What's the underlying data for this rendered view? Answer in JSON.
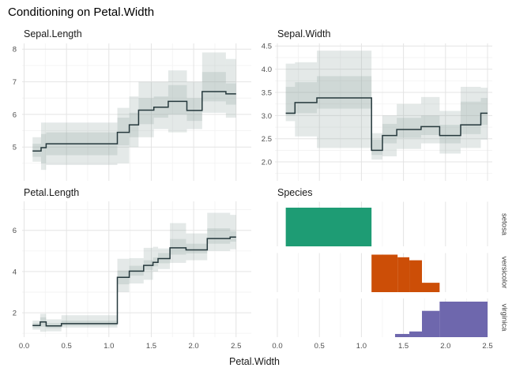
{
  "title": "Conditioning on Petal.Width",
  "colors": {
    "band": "rgba(141,163,158,0.24)",
    "step_line": "#25383c",
    "grid_major": "#e4e4e4",
    "grid_minor": "#f3f3f3",
    "tick_text": "#4f4f4f",
    "setosa": "#1e9c74",
    "versicolor": "#cc4e07",
    "virginica": "#6e67ad"
  },
  "chart_data": {
    "type": "multi-panel",
    "description": "Conditional step-means of iris variables given Petal.Width, with inner/outer confidence bands, plus Petal.Width histograms faceted by Species",
    "x_axis": {
      "title": "Petal.Width",
      "range": [
        0.0,
        2.5
      ],
      "ticks": [
        {
          "v": 0.0,
          "label": "0.0"
        },
        {
          "v": 0.5,
          "label": "0.5"
        },
        {
          "v": 1.0,
          "label": "1.0"
        },
        {
          "v": 1.5,
          "label": "1.5"
        },
        {
          "v": 2.0,
          "label": "2.0"
        },
        {
          "v": 2.5,
          "label": "2.5"
        }
      ],
      "minor": [
        0.25,
        0.75,
        1.25,
        1.75,
        2.25
      ]
    },
    "panels": [
      {
        "title": "Sepal.Length",
        "type": "step-line-with-bands",
        "ylim": [
          4.0,
          8.2
        ],
        "y_ticks": [
          {
            "v": 5,
            "label": "5"
          },
          {
            "v": 6,
            "label": "6"
          },
          {
            "v": 7,
            "label": "7"
          },
          {
            "v": 8,
            "label": "8"
          }
        ],
        "y_minor": [
          4.5,
          5.5,
          6.5,
          7.5
        ],
        "steps": [
          {
            "x0": 0.1,
            "x1": 0.2,
            "y": 4.88,
            "band": [
              4.55,
              4.7,
              5.1,
              5.3
            ]
          },
          {
            "x0": 0.2,
            "x1": 0.26,
            "y": 4.98,
            "band": [
              4.3,
              4.5,
              5.4,
              5.75
            ]
          },
          {
            "x0": 0.26,
            "x1": 1.1,
            "y": 5.1,
            "band": [
              4.45,
              4.75,
              5.45,
              5.75
            ]
          },
          {
            "x0": 1.1,
            "x1": 1.24,
            "y": 5.45,
            "band": [
              4.5,
              5.05,
              5.9,
              6.2
            ]
          },
          {
            "x0": 1.24,
            "x1": 1.35,
            "y": 5.68,
            "band": [
              5.0,
              5.3,
              6.05,
              6.55
            ]
          },
          {
            "x0": 1.35,
            "x1": 1.53,
            "y": 6.13,
            "band": [
              5.3,
              5.7,
              6.5,
              7.0
            ]
          },
          {
            "x0": 1.53,
            "x1": 1.7,
            "y": 6.22,
            "band": [
              5.55,
              5.9,
              6.55,
              7.0
            ]
          },
          {
            "x0": 1.7,
            "x1": 1.92,
            "y": 6.4,
            "band": [
              5.45,
              6.0,
              6.9,
              7.35
            ]
          },
          {
            "x0": 1.92,
            "x1": 2.1,
            "y": 6.12,
            "band": [
              5.55,
              5.8,
              6.5,
              7.0
            ]
          },
          {
            "x0": 2.1,
            "x1": 2.38,
            "y": 6.7,
            "band": [
              6.05,
              6.4,
              7.3,
              7.9
            ]
          },
          {
            "x0": 2.38,
            "x1": 2.5,
            "y": 6.63,
            "band": [
              5.9,
              6.3,
              6.95,
              7.7
            ]
          }
        ]
      },
      {
        "title": "Sepal.Width",
        "type": "step-line-with-bands",
        "ylim": [
          1.6,
          4.56
        ],
        "y_ticks": [
          {
            "v": 2.0,
            "label": "2.0"
          },
          {
            "v": 2.5,
            "label": "2.5"
          },
          {
            "v": 3.0,
            "label": "3.0"
          },
          {
            "v": 3.5,
            "label": "3.5"
          },
          {
            "v": 4.0,
            "label": "4.0"
          },
          {
            "v": 4.5,
            "label": "4.5"
          }
        ],
        "y_minor": [
          1.75,
          2.25,
          2.75,
          3.25,
          3.75,
          4.25
        ],
        "steps": [
          {
            "x0": 0.1,
            "x1": 0.21,
            "y": 3.05,
            "band": [
              2.88,
              3.0,
              3.62,
              4.12
            ]
          },
          {
            "x0": 0.21,
            "x1": 0.47,
            "y": 3.28,
            "band": [
              2.55,
              3.05,
              3.72,
              4.15
            ]
          },
          {
            "x0": 0.47,
            "x1": 1.12,
            "y": 3.38,
            "band": [
              2.3,
              3.15,
              3.85,
              4.4
            ]
          },
          {
            "x0": 1.12,
            "x1": 1.25,
            "y": 2.25,
            "band": [
              2.05,
              2.15,
              2.48,
              2.62
            ]
          },
          {
            "x0": 1.25,
            "x1": 1.42,
            "y": 2.57,
            "band": [
              2.12,
              2.4,
              2.82,
              3.0
            ]
          },
          {
            "x0": 1.42,
            "x1": 1.71,
            "y": 2.7,
            "band": [
              2.28,
              2.52,
              2.95,
              3.25
            ]
          },
          {
            "x0": 1.71,
            "x1": 1.93,
            "y": 2.76,
            "band": [
              2.4,
              2.58,
              3.0,
              3.4
            ]
          },
          {
            "x0": 1.93,
            "x1": 2.18,
            "y": 2.57,
            "band": [
              2.18,
              2.4,
              2.8,
              3.1
            ]
          },
          {
            "x0": 2.18,
            "x1": 2.42,
            "y": 2.8,
            "band": [
              2.3,
              2.6,
              3.3,
              3.62
            ]
          },
          {
            "x0": 2.42,
            "x1": 2.5,
            "y": 3.05,
            "band": [
              2.48,
              2.8,
              3.38,
              3.6
            ]
          }
        ]
      },
      {
        "title": "Petal.Length",
        "type": "step-line-with-bands",
        "ylim": [
          0.8,
          7.4
        ],
        "y_ticks": [
          {
            "v": 2,
            "label": "2"
          },
          {
            "v": 4,
            "label": "4"
          },
          {
            "v": 6,
            "label": "6"
          }
        ],
        "y_minor": [
          1,
          3,
          5,
          7
        ],
        "steps": [
          {
            "x0": 0.1,
            "x1": 0.19,
            "y": 1.38,
            "band": [
              1.18,
              1.28,
              1.5,
              1.62
            ]
          },
          {
            "x0": 0.19,
            "x1": 0.26,
            "y": 1.55,
            "band": [
              1.08,
              1.32,
              1.78,
              1.95
            ]
          },
          {
            "x0": 0.26,
            "x1": 0.44,
            "y": 1.36,
            "band": [
              1.1,
              1.25,
              1.5,
              1.68
            ]
          },
          {
            "x0": 0.44,
            "x1": 1.1,
            "y": 1.47,
            "band": [
              1.28,
              1.37,
              1.62,
              1.88
            ]
          },
          {
            "x0": 1.1,
            "x1": 1.24,
            "y": 3.72,
            "band": [
              3.0,
              3.38,
              4.05,
              4.62
            ]
          },
          {
            "x0": 1.24,
            "x1": 1.41,
            "y": 4.02,
            "band": [
              3.42,
              3.8,
              4.28,
              4.65
            ]
          },
          {
            "x0": 1.41,
            "x1": 1.52,
            "y": 4.3,
            "band": [
              3.6,
              4.08,
              4.55,
              5.15
            ]
          },
          {
            "x0": 1.52,
            "x1": 1.58,
            "y": 4.45,
            "band": [
              4.0,
              4.25,
              4.68,
              5.2
            ]
          },
          {
            "x0": 1.58,
            "x1": 1.72,
            "y": 4.63,
            "band": [
              4.12,
              4.4,
              4.9,
              5.12
            ]
          },
          {
            "x0": 1.72,
            "x1": 1.91,
            "y": 5.15,
            "band": [
              4.42,
              4.82,
              5.58,
              6.35
            ]
          },
          {
            "x0": 1.91,
            "x1": 2.16,
            "y": 5.05,
            "band": [
              4.55,
              4.88,
              5.35,
              5.85
            ]
          },
          {
            "x0": 2.16,
            "x1": 2.43,
            "y": 5.6,
            "band": [
              5.0,
              5.35,
              6.1,
              6.85
            ]
          },
          {
            "x0": 2.43,
            "x1": 2.5,
            "y": 5.67,
            "band": [
              5.08,
              5.45,
              5.95,
              6.75
            ]
          }
        ]
      },
      {
        "title": "Species",
        "type": "faceted-histogram",
        "facets": [
          {
            "label": "setosa",
            "color_key": "setosa",
            "bars": [
              {
                "x0": 0.1,
                "x1": 1.12,
                "h": 1.0
              }
            ]
          },
          {
            "label": "versicolor",
            "color_key": "versicolor",
            "bars": [
              {
                "x0": 1.12,
                "x1": 1.43,
                "h": 1.0
              },
              {
                "x0": 1.43,
                "x1": 1.57,
                "h": 0.93
              },
              {
                "x0": 1.57,
                "x1": 1.72,
                "h": 0.85
              },
              {
                "x0": 1.72,
                "x1": 1.93,
                "h": 0.25
              }
            ]
          },
          {
            "label": "virginica",
            "color_key": "virginica",
            "bars": [
              {
                "x0": 1.4,
                "x1": 1.57,
                "h": 0.09
              },
              {
                "x0": 1.57,
                "x1": 1.72,
                "h": 0.16
              },
              {
                "x0": 1.72,
                "x1": 1.93,
                "h": 0.74
              },
              {
                "x0": 1.93,
                "x1": 2.5,
                "h": 1.0
              }
            ]
          }
        ]
      }
    ]
  }
}
